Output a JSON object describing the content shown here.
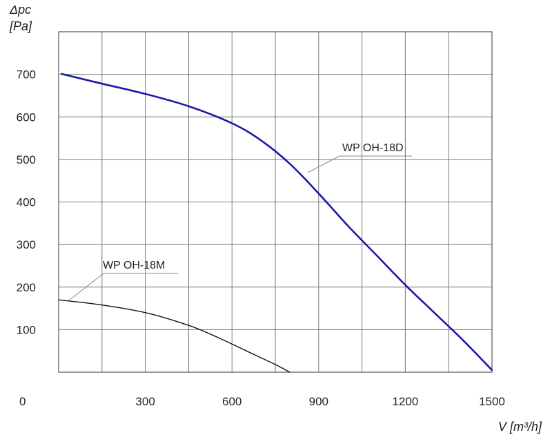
{
  "chart_data": {
    "type": "line",
    "ylabel_line1": "Δpc",
    "ylabel_line2": "[Pa]",
    "xlabel": "V [m³/h]",
    "origin_label": "0",
    "xlim": [
      0,
      1500
    ],
    "ylim": [
      0,
      800
    ],
    "x_grid_step": 150,
    "y_grid_step": 100,
    "xticks": [
      300,
      600,
      900,
      1200,
      1500
    ],
    "yticks": [
      100,
      200,
      300,
      400,
      500,
      600,
      700
    ],
    "grid": true,
    "series": [
      {
        "name": "WP OH-18D",
        "color": "#1a1aa8",
        "x": [
          10,
          150,
          300,
          450,
          600,
          700,
          800,
          900,
          1000,
          1100,
          1200,
          1300,
          1400,
          1500
        ],
        "y": [
          701,
          678,
          654,
          625,
          585,
          545,
          490,
          420,
          345,
          275,
          205,
          140,
          75,
          5
        ]
      },
      {
        "name": "WP OH-18M",
        "color": "#111111",
        "x": [
          0,
          150,
          300,
          450,
          550,
          650,
          750,
          800
        ],
        "y": [
          170,
          158,
          140,
          110,
          82,
          50,
          18,
          0
        ]
      }
    ]
  }
}
